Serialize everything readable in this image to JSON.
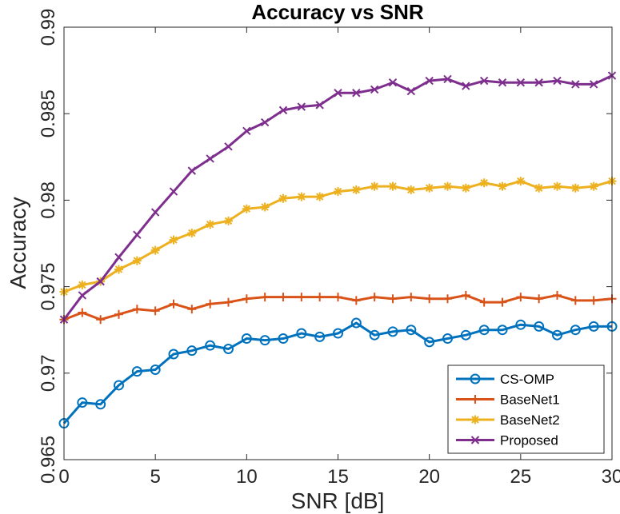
{
  "chart_data": {
    "type": "line",
    "title": "Accuracy vs SNR",
    "xlabel": "SNR [dB]",
    "ylabel": "Accuracy",
    "xlim": [
      0,
      30
    ],
    "ylim": [
      0.965,
      0.99
    ],
    "xticks": [
      0,
      5,
      10,
      15,
      20,
      25,
      30
    ],
    "yticks": [
      0.965,
      0.97,
      0.975,
      0.98,
      0.985,
      0.99
    ],
    "ytick_labels": [
      "0.965",
      "0.97",
      "0.975",
      "0.98",
      "0.985",
      "0.99"
    ],
    "grid": false,
    "legend_position": "bottom-right",
    "x": [
      0,
      1,
      2,
      3,
      4,
      5,
      6,
      7,
      8,
      9,
      10,
      11,
      12,
      13,
      14,
      15,
      16,
      17,
      18,
      19,
      20,
      21,
      22,
      23,
      24,
      25,
      26,
      27,
      28,
      29,
      30
    ],
    "series": [
      {
        "name": "CS-OMP",
        "color": "#0072BD",
        "marker": "circle",
        "values": [
          0.9671,
          0.9683,
          0.9682,
          0.9693,
          0.9701,
          0.9702,
          0.9711,
          0.9713,
          0.9716,
          0.9714,
          0.972,
          0.9719,
          0.972,
          0.9723,
          0.9721,
          0.9723,
          0.9729,
          0.9722,
          0.9724,
          0.9725,
          0.9718,
          0.972,
          0.9722,
          0.9725,
          0.9725,
          0.9728,
          0.9727,
          0.9722,
          0.9725,
          0.9727,
          0.9727
        ]
      },
      {
        "name": "BaseNet1",
        "color": "#D95319",
        "marker": "plus",
        "values": [
          0.9731,
          0.9735,
          0.9731,
          0.9734,
          0.9737,
          0.9736,
          0.974,
          0.9737,
          0.974,
          0.9741,
          0.9743,
          0.9744,
          0.9744,
          0.9744,
          0.9744,
          0.9744,
          0.9742,
          0.9744,
          0.9743,
          0.9744,
          0.9743,
          0.9743,
          0.9745,
          0.9741,
          0.9741,
          0.9744,
          0.9743,
          0.9745,
          0.9742,
          0.9742,
          0.9743
        ]
      },
      {
        "name": "BaseNet2",
        "color": "#EDB120",
        "marker": "star",
        "values": [
          0.9747,
          0.9751,
          0.9753,
          0.976,
          0.9765,
          0.9771,
          0.9777,
          0.9781,
          0.9786,
          0.9788,
          0.9795,
          0.9796,
          0.9801,
          0.9802,
          0.9802,
          0.9805,
          0.9806,
          0.9808,
          0.9808,
          0.9806,
          0.9807,
          0.9808,
          0.9807,
          0.981,
          0.9808,
          0.9811,
          0.9807,
          0.9808,
          0.9807,
          0.9808,
          0.9811
        ]
      },
      {
        "name": "Proposed",
        "color": "#7E2F8E",
        "marker": "x",
        "values": [
          0.9731,
          0.9745,
          0.9753,
          0.9767,
          0.978,
          0.9793,
          0.9805,
          0.9817,
          0.9824,
          0.9831,
          0.984,
          0.9845,
          0.9852,
          0.9854,
          0.9855,
          0.9862,
          0.9862,
          0.9864,
          0.9868,
          0.9863,
          0.9869,
          0.987,
          0.9866,
          0.9869,
          0.9868,
          0.9868,
          0.9868,
          0.9869,
          0.9867,
          0.9867,
          0.9872
        ]
      }
    ]
  }
}
